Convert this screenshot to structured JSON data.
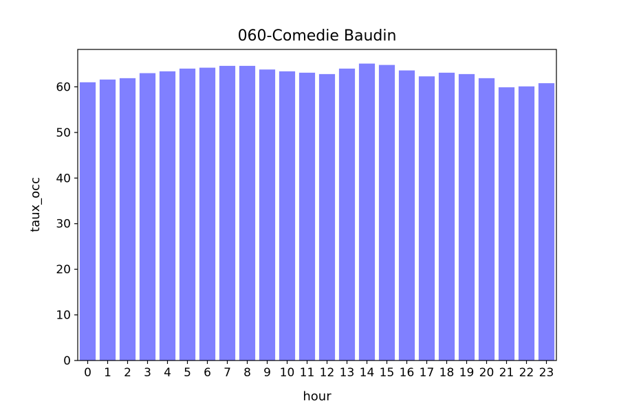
{
  "chart_data": {
    "type": "bar",
    "title": "060-Comedie Baudin",
    "xlabel": "hour",
    "ylabel": "taux_occ",
    "categories": [
      "0",
      "1",
      "2",
      "3",
      "4",
      "5",
      "6",
      "7",
      "8",
      "9",
      "10",
      "11",
      "12",
      "13",
      "14",
      "15",
      "16",
      "17",
      "18",
      "19",
      "20",
      "21",
      "22",
      "23"
    ],
    "values": [
      61.0,
      61.6,
      61.9,
      63.0,
      63.4,
      64.0,
      64.2,
      64.6,
      64.6,
      63.8,
      63.4,
      63.1,
      62.8,
      64.0,
      65.1,
      64.8,
      63.6,
      62.3,
      63.1,
      62.8,
      61.9,
      59.9,
      60.1,
      60.8
    ],
    "yticks": [
      0,
      10,
      20,
      30,
      40,
      50,
      60
    ],
    "ylim": [
      0,
      68.2
    ],
    "grid": false,
    "colors": {
      "bar": "#8080ff"
    }
  }
}
